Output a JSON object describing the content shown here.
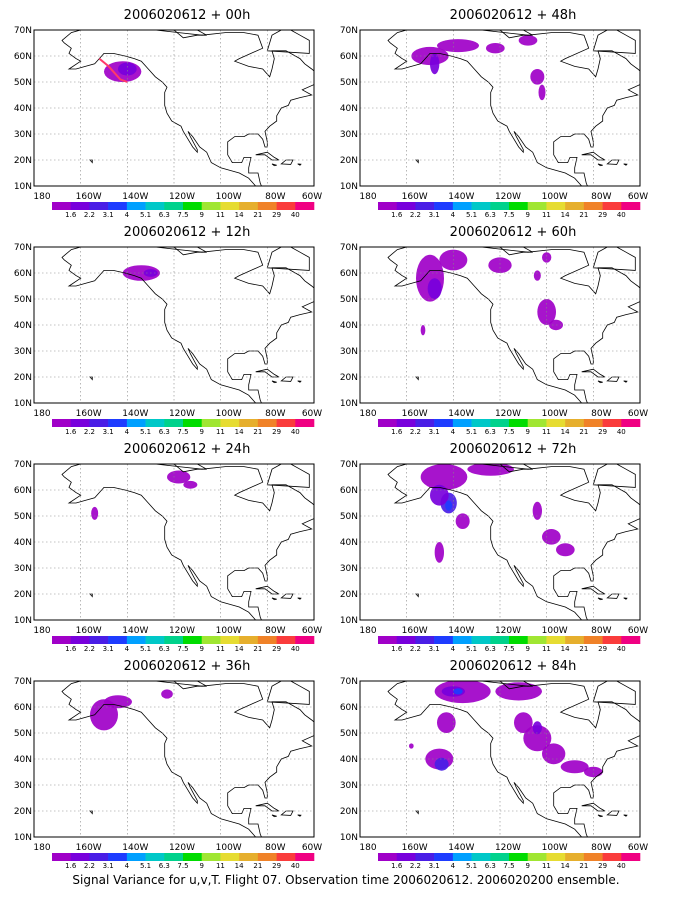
{
  "footer": "Signal Variance for u,v,T. Flight 07. Observation time 2006020612. 2006020200 ensemble.",
  "lat_labels": [
    "70N",
    "60N",
    "50N",
    "40N",
    "30N",
    "20N",
    "10N"
  ],
  "lon_labels": [
    "180",
    "160W",
    "140W",
    "120W",
    "100W",
    "80W",
    "60W"
  ],
  "colorbar": {
    "labels": [
      "1.6",
      "2.2",
      "3.1",
      "4",
      "5.1",
      "6.3",
      "7.5",
      "9",
      "11",
      "14",
      "21",
      "29",
      "40"
    ],
    "colors": [
      "#a000c8",
      "#7800dc",
      "#4a1ee6",
      "#1e3cff",
      "#00a0ff",
      "#00c8c8",
      "#00d28c",
      "#00dc00",
      "#a0e632",
      "#e6dc32",
      "#e6af2d",
      "#f08228",
      "#fa3c3c",
      "#f00082"
    ]
  },
  "panels": [
    {
      "title": "2006020612 + 00h"
    },
    {
      "title": "2006020612 + 48h"
    },
    {
      "title": "2006020612 + 12h"
    },
    {
      "title": "2006020612 + 60h"
    },
    {
      "title": "2006020612 + 24h"
    },
    {
      "title": "2006020612 + 72h"
    },
    {
      "title": "2006020612 + 36h"
    },
    {
      "title": "2006020612 + 84h"
    }
  ],
  "colors": {
    "coast": "#000000",
    "grid": "#888888",
    "flight_track": "#ff3a6a",
    "variance_low": "#a000c8",
    "variance_mid": "#7800dc",
    "variance_high": "#4a1ee6",
    "variance_peak": "#1e3cff"
  }
}
